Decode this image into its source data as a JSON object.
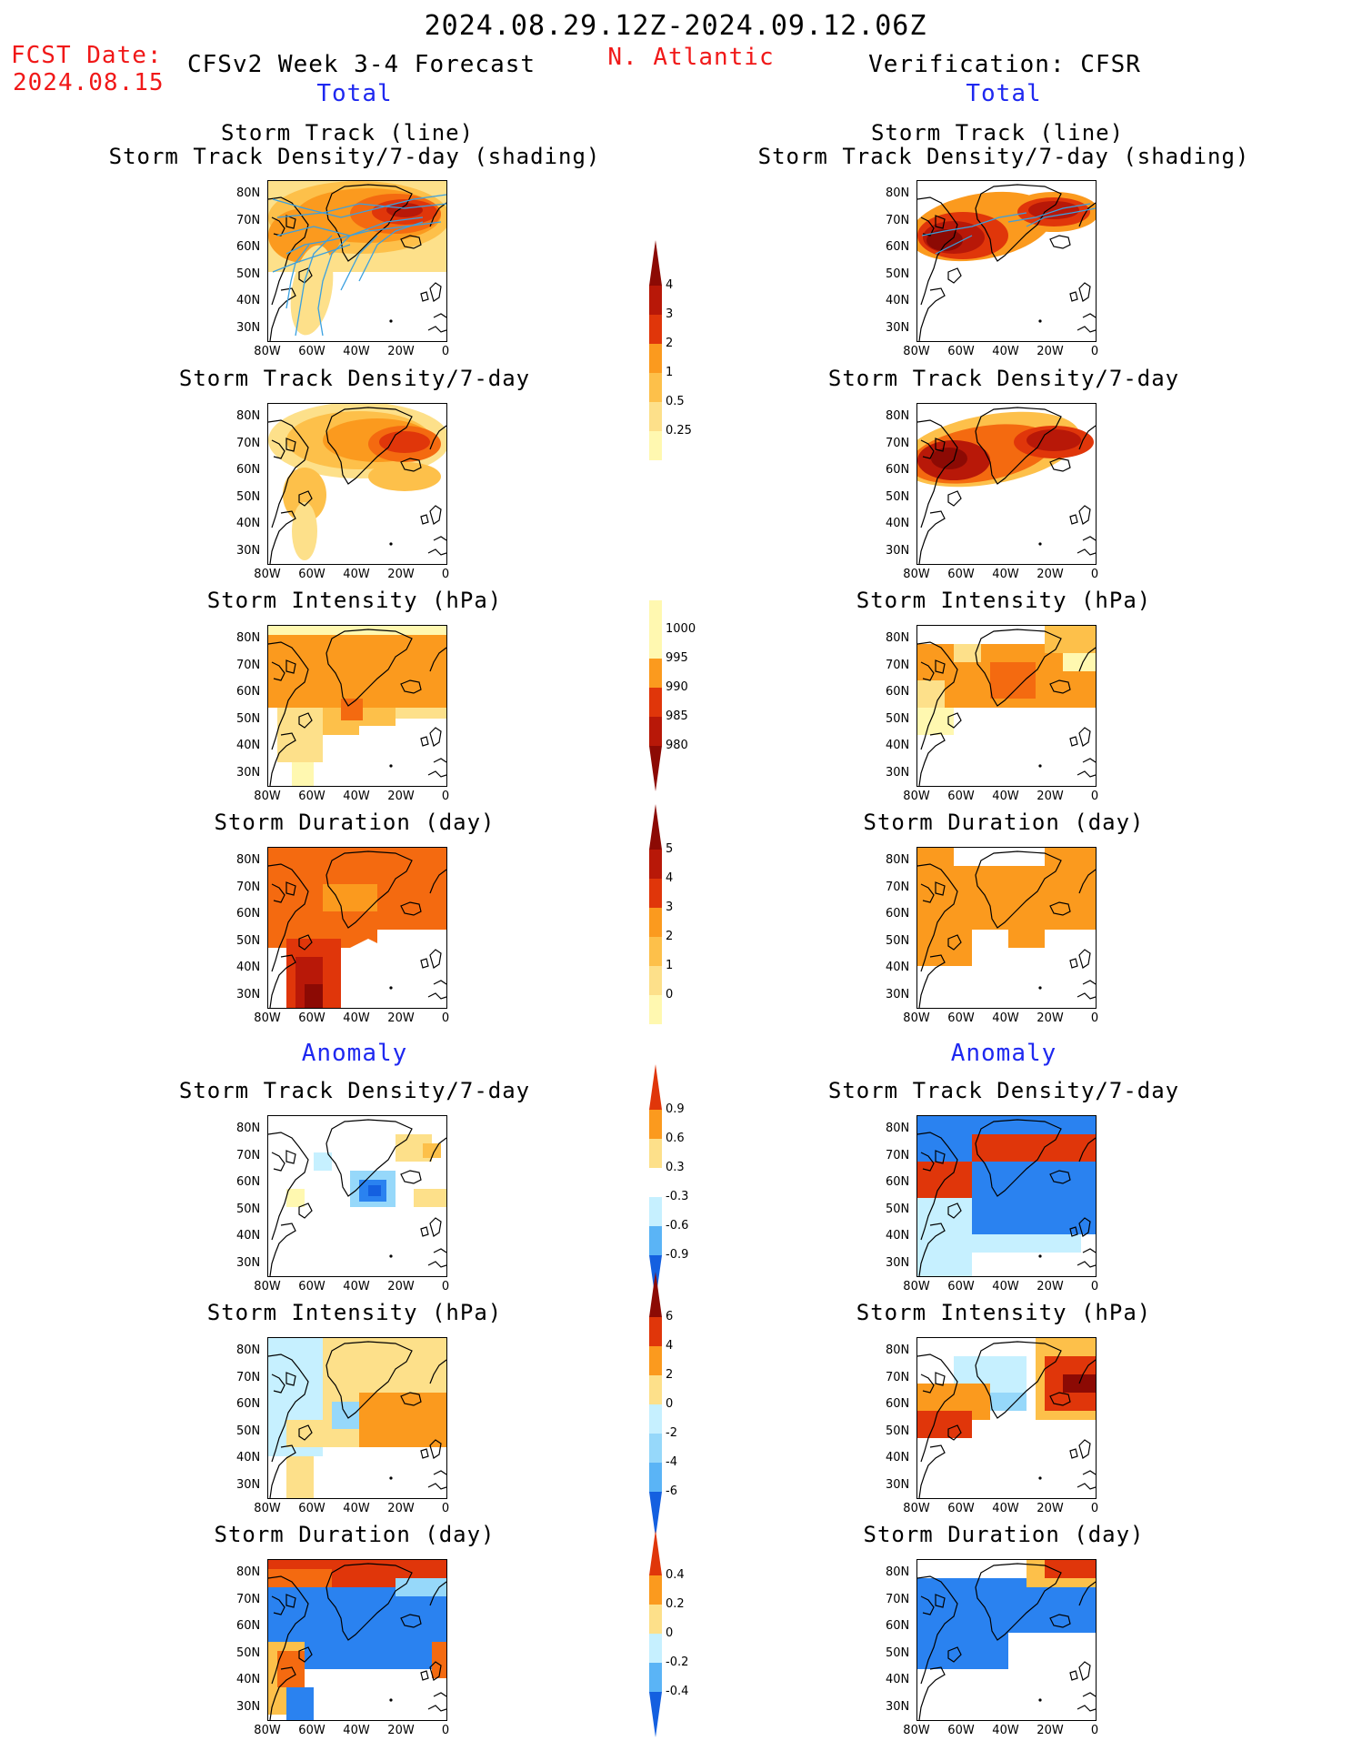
{
  "header": {
    "period": "2024.08.29.12Z-2024.09.12.06Z",
    "fcst_date_label": "FCST Date:",
    "fcst_date": "2024.08.15",
    "model_label": "CFSv2 Week 3-4 Forecast",
    "region": "N. Atlantic",
    "verification_label": "Verification: CFSR",
    "total_left": "Total",
    "total_right": "Total",
    "anomaly_left": "Anomaly",
    "anomaly_right": "Anomaly"
  },
  "panel_titles": {
    "track_line": "Storm Track (line)",
    "track_shading": "Storm Track Density/7-day (shading)",
    "density": "Storm Track Density/7-day",
    "intensity": "Storm Intensity (hPa)",
    "duration": "Storm Duration (day)"
  },
  "axes": {
    "lat_labels": [
      "80N",
      "70N",
      "60N",
      "50N",
      "40N",
      "30N"
    ],
    "lon_labels": [
      "80W",
      "60W",
      "40W",
      "20W",
      "0"
    ]
  },
  "colorbars": {
    "density": [
      "4",
      "3",
      "2",
      "1",
      "0.5",
      "0.25"
    ],
    "intensity": [
      "1000",
      "995",
      "990",
      "985",
      "980"
    ],
    "duration": [
      "5",
      "4",
      "3",
      "2",
      "1",
      "0"
    ],
    "density_anom": [
      "0.9",
      "0.6",
      "0.3",
      "-0.3",
      "-0.6",
      "-0.9"
    ],
    "intensity_anom": [
      "6",
      "4",
      "2",
      "0",
      "-2",
      "-4",
      "-6"
    ],
    "duration_anom": [
      "0.4",
      "0.2",
      "0",
      "-0.2",
      "-0.4"
    ]
  },
  "colors": {
    "red_text": "#f01818",
    "blue_text": "#1e28f0",
    "warm": [
      "#fff8b0",
      "#fde08a",
      "#fdc04a",
      "#fb9a1e",
      "#f46a10",
      "#e0360a",
      "#b81808",
      "#8c0a04"
    ],
    "cool": [
      "#c6f0ff",
      "#96d8fa",
      "#5ab4f6",
      "#2a82f0",
      "#1460e0"
    ],
    "track_line": "#3aa0e0"
  }
}
